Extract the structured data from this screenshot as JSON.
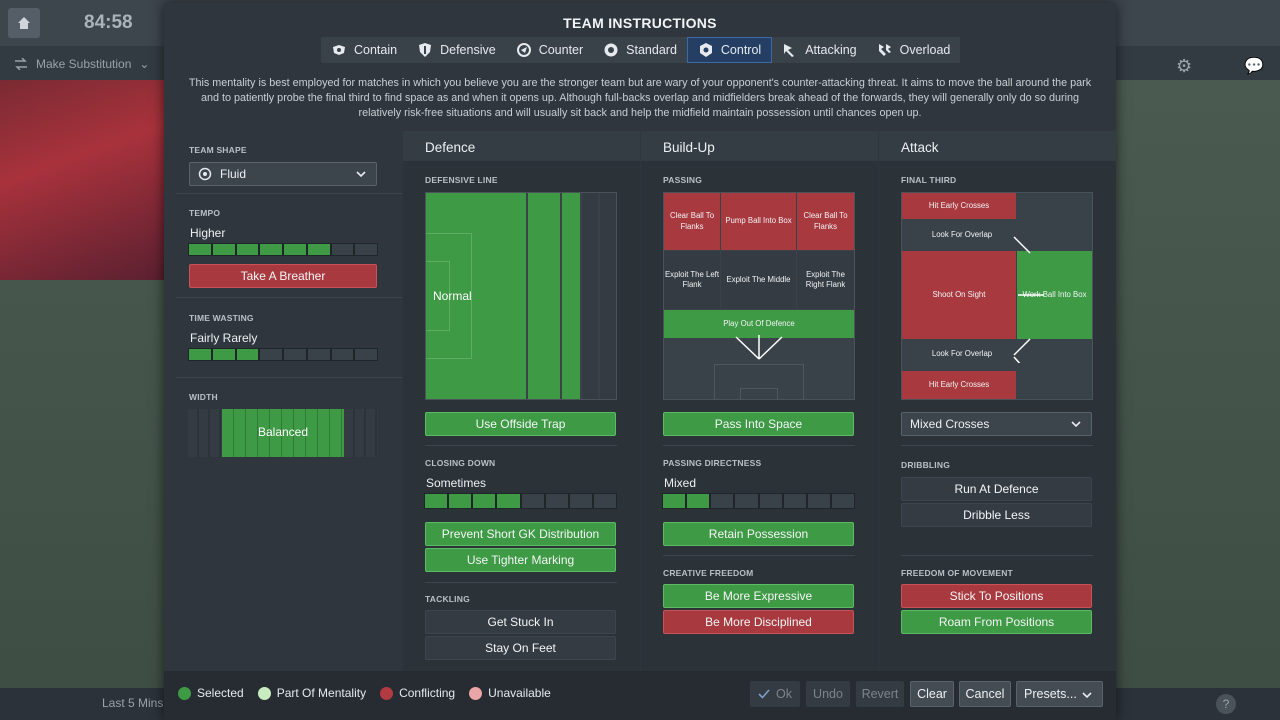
{
  "background": {
    "clock": "84:58",
    "make_substitution": "Make Substitution",
    "last_5": "Last 5 Mins"
  },
  "title": "TEAM INSTRUCTIONS",
  "tabs": [
    {
      "label": "Contain",
      "icon": "contain-icon"
    },
    {
      "label": "Defensive",
      "icon": "shield-icon"
    },
    {
      "label": "Counter",
      "icon": "counter-icon"
    },
    {
      "label": "Standard",
      "icon": "standard-icon"
    },
    {
      "label": "Control",
      "icon": "control-icon",
      "active": true
    },
    {
      "label": "Attacking",
      "icon": "attacking-icon"
    },
    {
      "label": "Overload",
      "icon": "overload-icon"
    }
  ],
  "description": "This mentality is best employed for matches in which you believe you are the stronger team but are wary of your opponent's counter-attacking threat. It aims to move the ball around the park and to patiently probe the final third to find space as and when it opens up. Although full-backs overlap and midfielders break ahead of the forwards, they will generally only do so during relatively risk-free situations and will usually sit back and help the midfield maintain possession until chances open up.",
  "left": {
    "team_shape_label": "TEAM SHAPE",
    "team_shape_value": "Fluid",
    "tempo_label": "TEMPO",
    "tempo_value": "Higher",
    "tempo_level": 0.75,
    "take_breather": "Take A Breather",
    "time_wasting_label": "TIME WASTING",
    "time_wasting_value": "Fairly Rarely",
    "time_wasting_level": 0.4,
    "width_label": "WIDTH",
    "width_value": "Balanced"
  },
  "defence": {
    "header": "Defence",
    "defensive_line_label": "DEFENSIVE LINE",
    "defensive_line_value": "Normal",
    "offside_trap": "Use Offside Trap",
    "closing_down_label": "CLOSING DOWN",
    "closing_down_value": "Sometimes",
    "closing_down_level": 0.55,
    "prevent_gk": "Prevent Short GK Distribution",
    "tighter_marking": "Use Tighter Marking",
    "tackling_label": "TACKLING",
    "get_stuck_in": "Get Stuck In",
    "stay_on_feet": "Stay On Feet"
  },
  "buildup": {
    "header": "Build-Up",
    "passing_label": "PASSING",
    "clear_left": "Clear Ball To Flanks",
    "pump_ball": "Pump Ball Into Box",
    "clear_right": "Clear Ball To Flanks",
    "exploit_left": "Exploit The Left Flank",
    "exploit_middle": "Exploit The Middle",
    "exploit_right": "Exploit The Right Flank",
    "play_out": "Play Out Of Defence",
    "pass_into_space": "Pass Into Space",
    "directness_label": "PASSING DIRECTNESS",
    "directness_value": "Mixed",
    "directness_level": 0.2,
    "retain_possession": "Retain Possession",
    "creative_label": "CREATIVE FREEDOM",
    "more_expressive": "Be More Expressive",
    "more_disciplined": "Be More Disciplined"
  },
  "attack": {
    "header": "Attack",
    "final_third_label": "FINAL THIRD",
    "hit_early_top": "Hit Early Crosses",
    "overlap_top": "Look For Overlap",
    "shoot_on_sight": "Shoot On Sight",
    "work_ball": "Work Ball Into Box",
    "overlap_bottom": "Look For Overlap",
    "hit_early_bottom": "Hit Early Crosses",
    "crosses_value": "Mixed Crosses",
    "dribbling_label": "DRIBBLING",
    "run_at_defence": "Run At Defence",
    "dribble_less": "Dribble Less",
    "freedom_label": "FREEDOM OF MOVEMENT",
    "stick_positions": "Stick To Positions",
    "roam_positions": "Roam From Positions"
  },
  "legend": [
    {
      "label": "Selected",
      "color": "#3e9a45"
    },
    {
      "label": "Part Of Mentality",
      "color": "#c8ecc0"
    },
    {
      "label": "Conflicting",
      "color": "#b23a43"
    },
    {
      "label": "Unavailable",
      "color": "#e9a5a7"
    }
  ],
  "footer": {
    "ok": "Ok",
    "undo": "Undo",
    "revert": "Revert",
    "clear": "Clear",
    "cancel": "Cancel",
    "presets": "Presets..."
  }
}
